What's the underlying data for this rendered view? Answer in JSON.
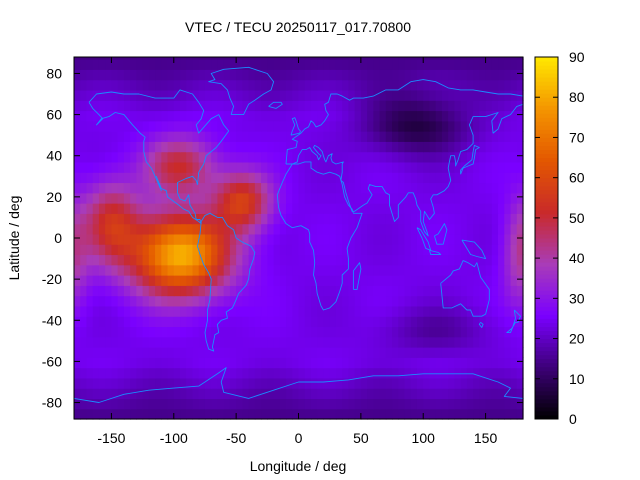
{
  "chart_data": {
    "type": "heatmap",
    "title": "VTEC / TECU 20250117_017.70800",
    "xlabel": "Longitude / deg",
    "ylabel": "Latitude / deg",
    "xlim": [
      -180,
      180
    ],
    "ylim": [
      -88,
      88
    ],
    "x_ticks": [
      -150,
      -100,
      -50,
      0,
      50,
      100,
      150
    ],
    "y_ticks": [
      80,
      60,
      40,
      20,
      0,
      -20,
      -40,
      -60,
      -80
    ],
    "colorbar": {
      "range": [
        0,
        90
      ],
      "ticks": [
        0,
        10,
        20,
        30,
        40,
        50,
        60,
        70,
        80,
        90
      ],
      "palette": [
        "#000000",
        "#3d0078",
        "#7a00ff",
        "#a93cb8",
        "#c92a2a",
        "#e35700",
        "#f49500",
        "#ffe800"
      ]
    },
    "grid": false,
    "overlay": "coastlines",
    "coastline_color": "#1a8cff",
    "features": [
      {
        "name": "equatorial-american-peak",
        "lon": -95,
        "lat": -8,
        "value": 82
      },
      {
        "name": "north-american-high",
        "lon": -95,
        "lat": 35,
        "value": 52
      },
      {
        "name": "atlantic-crest",
        "lon": -45,
        "lat": 18,
        "value": 62
      },
      {
        "name": "eastern-pacific-crest",
        "lon": -150,
        "lat": 8,
        "value": 60
      },
      {
        "name": "western-pacific-band",
        "lon": 178,
        "lat": -8,
        "value": 42
      },
      {
        "name": "asian-low",
        "lon": 95,
        "lat": 55,
        "value": 7
      },
      {
        "name": "southern-indian-low",
        "lon": 110,
        "lat": -45,
        "value": 15
      }
    ]
  }
}
